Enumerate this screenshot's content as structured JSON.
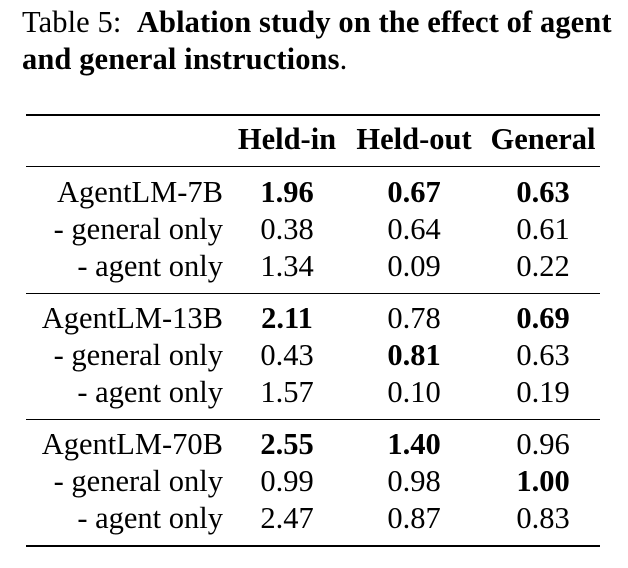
{
  "caption": {
    "prefix": "Table 5:",
    "bold_text": "Ablation study on the effect of agent and general instructions",
    "suffix": "."
  },
  "table": {
    "headers": [
      "Held-in",
      "Held-out",
      "General"
    ],
    "groups": [
      {
        "rows": [
          {
            "label": "AgentLM-7B",
            "values": [
              "1.96",
              "0.67",
              "0.63"
            ],
            "bold": [
              true,
              true,
              true
            ]
          },
          {
            "label": "- general only",
            "values": [
              "0.38",
              "0.64",
              "0.61"
            ],
            "bold": [
              false,
              false,
              false
            ]
          },
          {
            "label": "- agent only",
            "values": [
              "1.34",
              "0.09",
              "0.22"
            ],
            "bold": [
              false,
              false,
              false
            ]
          }
        ]
      },
      {
        "rows": [
          {
            "label": "AgentLM-13B",
            "values": [
              "2.11",
              "0.78",
              "0.69"
            ],
            "bold": [
              true,
              false,
              true
            ]
          },
          {
            "label": "- general only",
            "values": [
              "0.43",
              "0.81",
              "0.63"
            ],
            "bold": [
              false,
              true,
              false
            ]
          },
          {
            "label": "- agent only",
            "values": [
              "1.57",
              "0.10",
              "0.19"
            ],
            "bold": [
              false,
              false,
              false
            ]
          }
        ]
      },
      {
        "rows": [
          {
            "label": "AgentLM-70B",
            "values": [
              "2.55",
              "1.40",
              "0.96"
            ],
            "bold": [
              true,
              true,
              false
            ]
          },
          {
            "label": "- general only",
            "values": [
              "0.99",
              "0.98",
              "1.00"
            ],
            "bold": [
              false,
              false,
              true
            ]
          },
          {
            "label": "- agent only",
            "values": [
              "2.47",
              "0.87",
              "0.83"
            ],
            "bold": [
              false,
              false,
              false
            ]
          }
        ]
      }
    ]
  }
}
